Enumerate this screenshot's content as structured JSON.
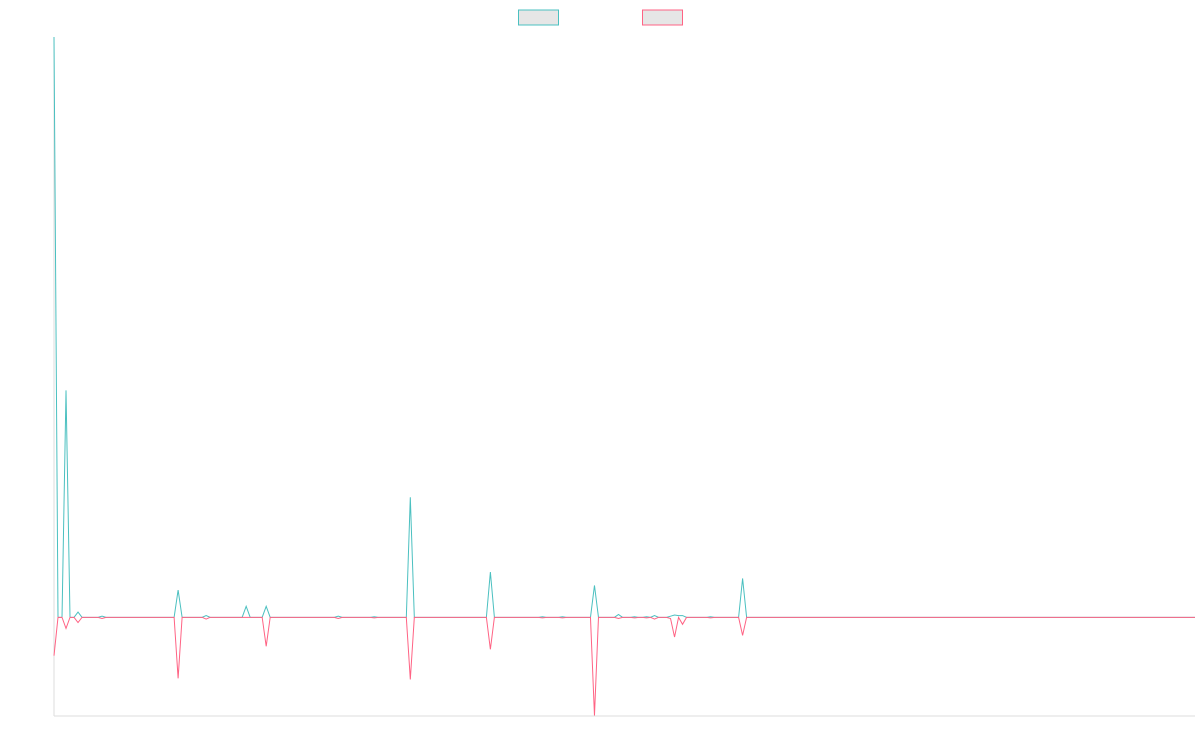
{
  "chart_data": {
    "type": "line",
    "x": [
      0,
      1,
      2,
      3,
      4,
      5,
      6,
      7,
      11,
      12,
      13,
      30,
      31,
      32,
      37,
      38,
      39,
      47,
      48,
      49,
      52,
      53,
      54,
      70,
      71,
      72,
      79,
      80,
      81,
      88,
      89,
      90,
      108,
      109,
      110,
      121,
      122,
      123,
      126,
      127,
      128,
      134,
      135,
      136,
      140,
      141,
      142,
      144,
      145,
      146,
      147,
      148,
      149,
      150,
      151,
      153,
      154,
      155,
      156,
      157,
      158,
      163,
      164,
      165,
      171,
      172,
      173,
      285
    ],
    "series": [
      {
        "color": "#4bc0c0",
        "values": [
          100,
          0,
          0,
          39.1,
          0,
          0,
          0.9,
          0,
          0,
          0.2,
          0,
          0,
          4.7,
          0,
          0,
          0.3,
          0,
          0,
          1.9,
          0,
          0,
          1.9,
          0,
          0,
          0.2,
          0,
          0,
          0.1,
          0,
          0,
          20.7,
          0,
          0,
          7.8,
          0,
          0,
          0.1,
          0,
          0,
          0.1,
          0,
          0,
          5.5,
          0,
          0,
          0.5,
          0,
          0,
          0.1,
          0,
          0,
          0.1,
          0,
          0.3,
          0,
          0,
          0.2,
          0.4,
          0.3,
          0.3,
          0,
          0,
          0.1,
          0,
          0,
          6.7,
          0,
          0
        ]
      },
      {
        "color": "#ff6384",
        "values": [
          -6.6,
          0,
          0,
          -1.9,
          0,
          0,
          -0.9,
          0,
          0,
          -0.2,
          0,
          0,
          -10.5,
          0,
          0,
          -0.3,
          0,
          0,
          0,
          0,
          0,
          -5.0,
          0,
          0,
          -0.2,
          0,
          0,
          -0.1,
          0,
          0,
          -10.7,
          0,
          0,
          -5.5,
          0,
          0,
          -0.1,
          0,
          0,
          -0.1,
          0,
          0,
          -16.9,
          0,
          0,
          -0.2,
          0,
          0,
          -0.1,
          0,
          0,
          -0.1,
          0,
          -0.3,
          0,
          0,
          -0.2,
          -3.4,
          0,
          -1.2,
          0,
          0,
          -0.1,
          0,
          0,
          -3.1,
          0,
          0
        ]
      }
    ],
    "xlim": [
      0,
      285
    ],
    "ylim": [
      -17,
      100
    ],
    "legend": "top"
  }
}
